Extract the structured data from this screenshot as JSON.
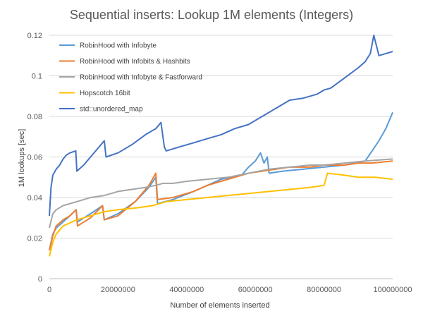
{
  "chart_data": {
    "type": "line",
    "title": "Sequential inserts: Lookup 1M elements (Integers)",
    "xlabel": "Number  of elements  inserted",
    "ylabel": "1M lookups [sec]",
    "xlim": [
      0,
      100000000
    ],
    "ylim": [
      0,
      0.12
    ],
    "x_ticks": [
      0,
      20000000,
      40000000,
      60000000,
      80000000,
      100000000
    ],
    "x_tick_labels": [
      "0",
      "20000000",
      "40000000",
      "60000000",
      "80000000",
      "100000000"
    ],
    "y_ticks": [
      0,
      0.02,
      0.04,
      0.06,
      0.08,
      0.1,
      0.12
    ],
    "y_tick_labels": [
      "0",
      "0.02",
      "0.04",
      "0.06",
      "0.08",
      "0.1",
      "0.12"
    ],
    "grid": "horizontal",
    "legend_position": "top-left",
    "series": [
      {
        "name": "RobinHood with Infobyte",
        "color": "#5b9bd5",
        "points": [
          [
            0,
            0.014
          ],
          [
            1000000,
            0.022
          ],
          [
            2000000,
            0.025
          ],
          [
            4000000,
            0.028
          ],
          [
            6000000,
            0.031
          ],
          [
            7800000,
            0.034
          ],
          [
            8200000,
            0.028
          ],
          [
            12000000,
            0.032
          ],
          [
            15500000,
            0.036
          ],
          [
            16000000,
            0.029
          ],
          [
            20000000,
            0.032
          ],
          [
            25000000,
            0.038
          ],
          [
            29000000,
            0.045
          ],
          [
            31000000,
            0.05
          ],
          [
            31500000,
            0.037
          ],
          [
            36000000,
            0.039
          ],
          [
            42000000,
            0.043
          ],
          [
            46000000,
            0.046
          ],
          [
            50000000,
            0.049
          ],
          [
            53000000,
            0.05
          ],
          [
            56000000,
            0.051
          ],
          [
            58000000,
            0.055
          ],
          [
            60000000,
            0.058
          ],
          [
            61500000,
            0.062
          ],
          [
            62500000,
            0.057
          ],
          [
            63500000,
            0.06
          ],
          [
            64000000,
            0.052
          ],
          [
            68000000,
            0.053
          ],
          [
            74000000,
            0.054
          ],
          [
            80000000,
            0.055
          ],
          [
            86000000,
            0.056
          ],
          [
            92000000,
            0.058
          ],
          [
            94000000,
            0.063
          ],
          [
            96000000,
            0.068
          ],
          [
            98000000,
            0.074
          ],
          [
            100000000,
            0.082
          ]
        ]
      },
      {
        "name": "RobinHood with Infobits & Hashbits",
        "color": "#ed7d31",
        "points": [
          [
            0,
            0.014
          ],
          [
            1000000,
            0.021
          ],
          [
            2000000,
            0.026
          ],
          [
            4000000,
            0.029
          ],
          [
            6000000,
            0.031
          ],
          [
            7800000,
            0.034
          ],
          [
            8200000,
            0.026
          ],
          [
            12000000,
            0.03
          ],
          [
            15500000,
            0.036
          ],
          [
            16000000,
            0.029
          ],
          [
            20000000,
            0.031
          ],
          [
            25000000,
            0.038
          ],
          [
            29000000,
            0.046
          ],
          [
            31000000,
            0.052
          ],
          [
            31500000,
            0.039
          ],
          [
            36000000,
            0.04
          ],
          [
            42000000,
            0.043
          ],
          [
            46000000,
            0.046
          ],
          [
            50000000,
            0.048
          ],
          [
            54000000,
            0.05
          ],
          [
            58000000,
            0.052
          ],
          [
            62000000,
            0.053
          ],
          [
            66000000,
            0.054
          ],
          [
            70000000,
            0.055
          ],
          [
            76000000,
            0.055
          ],
          [
            80000000,
            0.056
          ],
          [
            86000000,
            0.056
          ],
          [
            90000000,
            0.057
          ],
          [
            94000000,
            0.057
          ],
          [
            100000000,
            0.058
          ]
        ]
      },
      {
        "name": "RobinHood with Infobyte & Fastforward",
        "color": "#a5a5a5",
        "points": [
          [
            0,
            0.025
          ],
          [
            1000000,
            0.032
          ],
          [
            2000000,
            0.034
          ],
          [
            4000000,
            0.036
          ],
          [
            8000000,
            0.038
          ],
          [
            12000000,
            0.04
          ],
          [
            16000000,
            0.041
          ],
          [
            20000000,
            0.043
          ],
          [
            24000000,
            0.044
          ],
          [
            28000000,
            0.045
          ],
          [
            31000000,
            0.046
          ],
          [
            33000000,
            0.047
          ],
          [
            36000000,
            0.047
          ],
          [
            40000000,
            0.048
          ],
          [
            46000000,
            0.049
          ],
          [
            52000000,
            0.05
          ],
          [
            58000000,
            0.052
          ],
          [
            64000000,
            0.054
          ],
          [
            70000000,
            0.055
          ],
          [
            76000000,
            0.056
          ],
          [
            80000000,
            0.056
          ],
          [
            86000000,
            0.057
          ],
          [
            92000000,
            0.058
          ],
          [
            100000000,
            0.059
          ]
        ]
      },
      {
        "name": "Hopscotch 16bit",
        "color": "#ffc000",
        "points": [
          [
            0,
            0.011
          ],
          [
            1000000,
            0.018
          ],
          [
            2000000,
            0.022
          ],
          [
            4000000,
            0.026
          ],
          [
            8000000,
            0.029
          ],
          [
            12000000,
            0.031
          ],
          [
            16000000,
            0.033
          ],
          [
            20000000,
            0.034
          ],
          [
            26000000,
            0.035
          ],
          [
            30000000,
            0.036
          ],
          [
            34000000,
            0.038
          ],
          [
            40000000,
            0.039
          ],
          [
            46000000,
            0.04
          ],
          [
            52000000,
            0.041
          ],
          [
            58000000,
            0.042
          ],
          [
            64000000,
            0.043
          ],
          [
            70000000,
            0.044
          ],
          [
            76000000,
            0.045
          ],
          [
            80000000,
            0.046
          ],
          [
            81000000,
            0.052
          ],
          [
            86000000,
            0.051
          ],
          [
            90000000,
            0.05
          ],
          [
            95000000,
            0.05
          ],
          [
            100000000,
            0.049
          ]
        ]
      },
      {
        "name": "std::unordered_map",
        "color": "#4472c4",
        "points": [
          [
            0,
            0.031
          ],
          [
            500000,
            0.045
          ],
          [
            1000000,
            0.051
          ],
          [
            2000000,
            0.054
          ],
          [
            3000000,
            0.056
          ],
          [
            4000000,
            0.059
          ],
          [
            5000000,
            0.061
          ],
          [
            6000000,
            0.062
          ],
          [
            7700000,
            0.063
          ],
          [
            8000000,
            0.053
          ],
          [
            10000000,
            0.056
          ],
          [
            12000000,
            0.06
          ],
          [
            14000000,
            0.064
          ],
          [
            16000000,
            0.068
          ],
          [
            16500000,
            0.06
          ],
          [
            20000000,
            0.062
          ],
          [
            24000000,
            0.066
          ],
          [
            28000000,
            0.071
          ],
          [
            31000000,
            0.074
          ],
          [
            32500000,
            0.077
          ],
          [
            33500000,
            0.065
          ],
          [
            34000000,
            0.063
          ],
          [
            38000000,
            0.065
          ],
          [
            42000000,
            0.067
          ],
          [
            46000000,
            0.069
          ],
          [
            50000000,
            0.071
          ],
          [
            54000000,
            0.074
          ],
          [
            58000000,
            0.076
          ],
          [
            62000000,
            0.08
          ],
          [
            66000000,
            0.084
          ],
          [
            70000000,
            0.088
          ],
          [
            74000000,
            0.089
          ],
          [
            78000000,
            0.091
          ],
          [
            80000000,
            0.093
          ],
          [
            82000000,
            0.094
          ],
          [
            86000000,
            0.099
          ],
          [
            90000000,
            0.104
          ],
          [
            92000000,
            0.107
          ],
          [
            93500000,
            0.111
          ],
          [
            94500000,
            0.12
          ],
          [
            96000000,
            0.11
          ],
          [
            98000000,
            0.111
          ],
          [
            100000000,
            0.112
          ]
        ]
      }
    ]
  }
}
